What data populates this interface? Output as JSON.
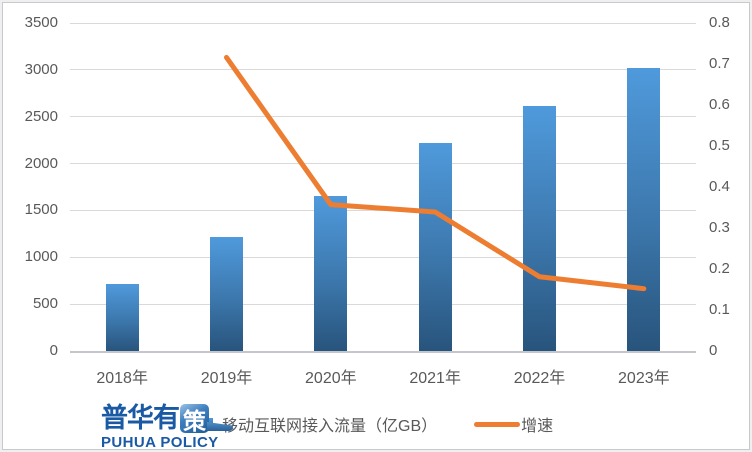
{
  "chart_data": {
    "type": "combo-bar-line",
    "title": "",
    "categories": [
      "2018年",
      "2019年",
      "2020年",
      "2021年",
      "2022年",
      "2023年"
    ],
    "series": [
      {
        "name": "移动互联网接入流量（亿GB）",
        "type": "bar",
        "axis": "left",
        "values": [
          711,
          1220,
          1656,
          2216,
          2618,
          3015
        ]
      },
      {
        "name": "增速",
        "type": "line",
        "axis": "right",
        "values": [
          null,
          0.716,
          0.357,
          0.339,
          0.181,
          0.152
        ]
      }
    ],
    "left_axis": {
      "min": 0,
      "max": 3500,
      "step": 500,
      "tick_labels": [
        "0",
        "500",
        "1000",
        "1500",
        "2000",
        "2500",
        "3000",
        "3500"
      ]
    },
    "right_axis": {
      "min": 0,
      "max": 0.8,
      "step": 0.1,
      "tick_labels": [
        "0",
        "0.1",
        "0.2",
        "0.3",
        "0.4",
        "0.5",
        "0.6",
        "0.7",
        "0.8"
      ]
    },
    "grid": true,
    "legend_position": "bottom"
  },
  "legend": {
    "bar_label": "移动互联网接入流量（亿GB）",
    "line_label": "增速"
  },
  "logo": {
    "cn_main": "普华有",
    "cn_accent": "策",
    "en": "PUHUA POLICY"
  },
  "colors": {
    "bar-top": "#4F9ADC",
    "bar-mid": "#3C77AC",
    "bar-bottom": "#28547C",
    "line-orange": "#ED7D31",
    "axis-text": "#595959",
    "gridline": "#D9D9D9",
    "axis-line": "#C3C7CB",
    "logo-blue": "#1A5AA4",
    "frame-border": "#C6CACF"
  }
}
